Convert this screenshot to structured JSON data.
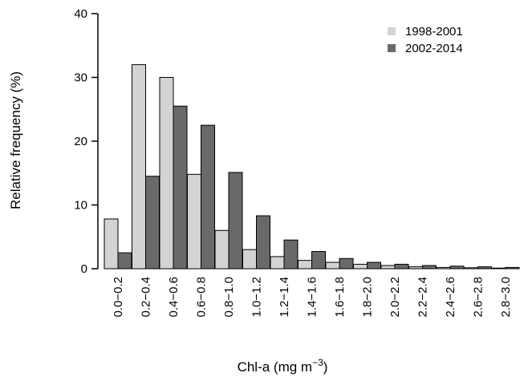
{
  "chart_data": {
    "type": "bar",
    "xlabel": "Chl-a (mg m",
    "xlabel_unit_exponent": "−3",
    "xlabel_suffix": ")",
    "ylabel": "Relative frequency (%)",
    "ylim": [
      0,
      40
    ],
    "yticks": [
      "0",
      "10",
      "20",
      "30",
      "40"
    ],
    "categories": [
      "0.0−0.2",
      "0.2−0.4",
      "0.4−0.6",
      "0.6−0.8",
      "0.8−1.0",
      "1.0−1.2",
      "1.2−1.4",
      "1.4−1.6",
      "1.6−1.8",
      "1.8−2.0",
      "2.0−2.2",
      "2.2−2.4",
      "2.4−2.6",
      "2.6−2.8",
      "2.8−3.0"
    ],
    "series": [
      {
        "name": "1998-2001",
        "color": "#d3d3d3",
        "values": [
          7.8,
          32.0,
          30.0,
          14.8,
          6.0,
          3.0,
          1.9,
          1.3,
          1.0,
          0.7,
          0.5,
          0.3,
          0.2,
          0.15,
          0.1
        ]
      },
      {
        "name": "2002-2014",
        "color": "#696969",
        "values": [
          2.5,
          14.5,
          25.5,
          22.5,
          15.1,
          8.3,
          4.5,
          2.7,
          1.6,
          1.0,
          0.7,
          0.5,
          0.4,
          0.3,
          0.2
        ]
      }
    ],
    "legend_position": "top-right",
    "grid": false
  }
}
